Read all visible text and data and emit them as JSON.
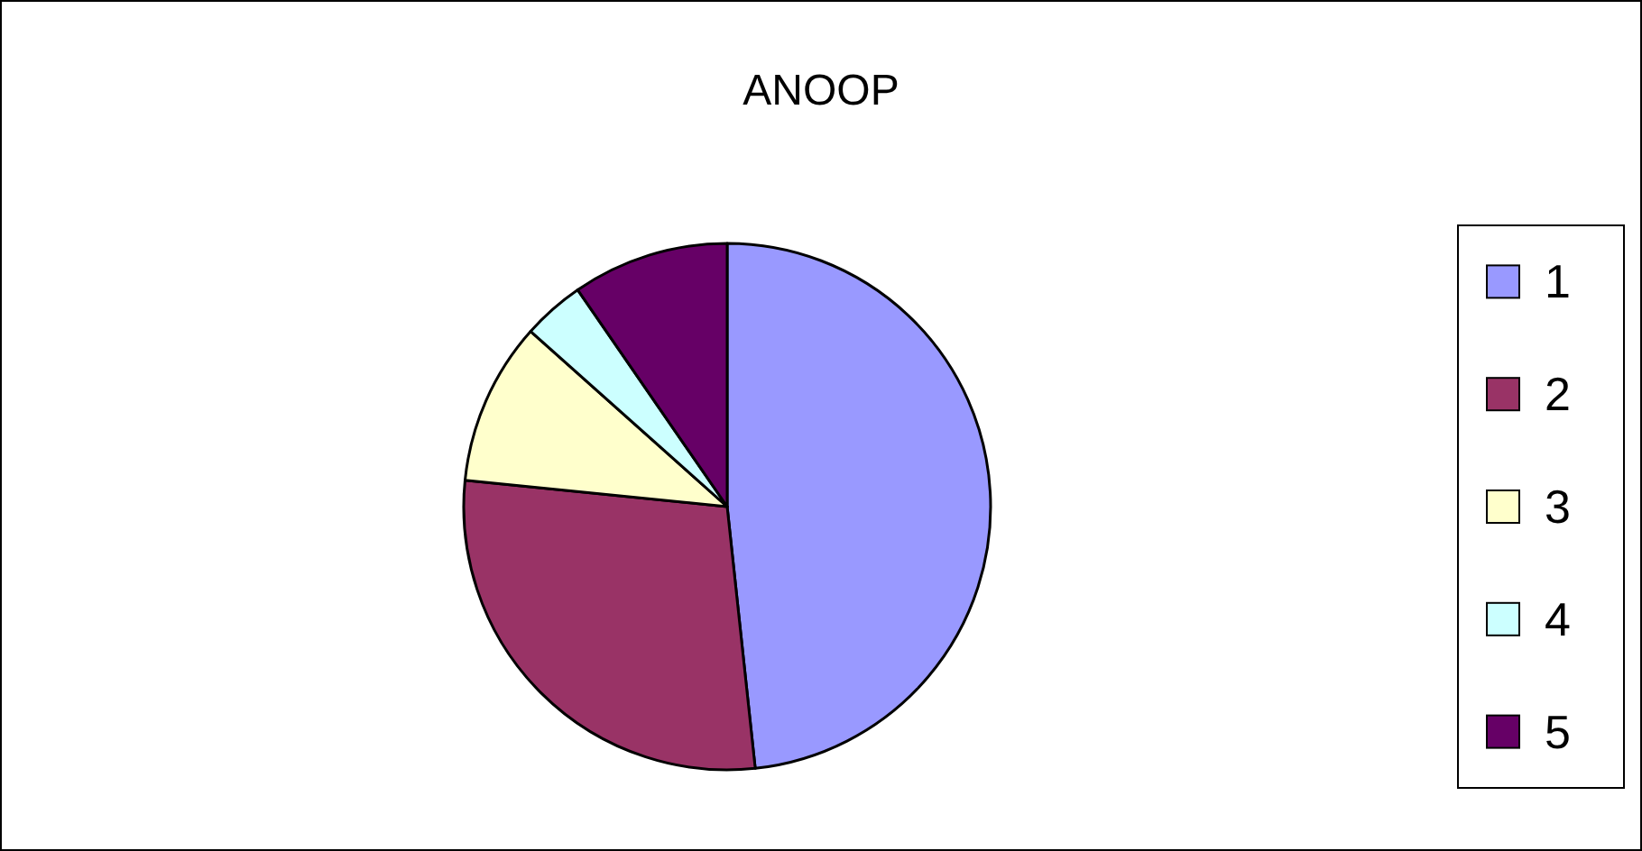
{
  "chart_data": {
    "type": "pie",
    "title": "ANOOP",
    "categories": [
      "1",
      "2",
      "3",
      "4",
      "5"
    ],
    "values": [
      48.3,
      28.3,
      10,
      3.8,
      9.6
    ],
    "colors": [
      "#9999ff",
      "#993366",
      "#ffffcc",
      "#ccffff",
      "#660066"
    ],
    "legend": "right"
  }
}
